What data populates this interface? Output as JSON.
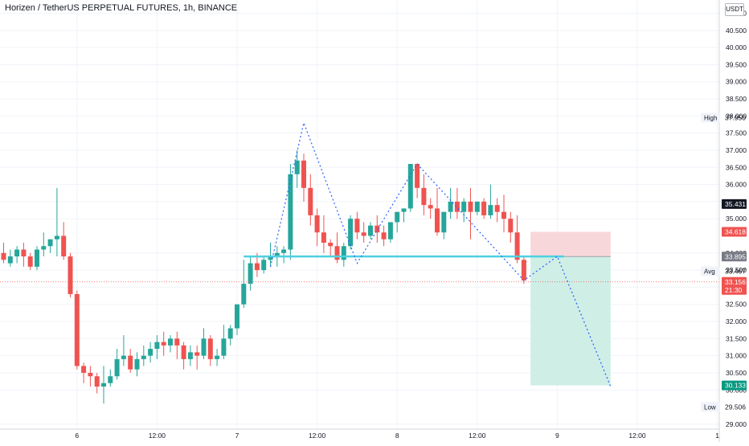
{
  "header": {
    "symbol_title": "Horizen / TetherUS PERPETUAL FUTURES, 1h, BINANCE",
    "currency": "USDT"
  },
  "colors": {
    "up": "#26a69a",
    "down": "#ef5350",
    "pattern_line": "#2962ff",
    "neckline": "#4dd0e1",
    "stop_zone": "#f8d7da",
    "target_zone": "#cfeee6",
    "grid": "#f0f3fa",
    "axis_text": "#131722"
  },
  "chart_data": {
    "type": "candlestick",
    "title": "Horizen / TetherUS PERPETUAL FUTURES, 1h, BINANCE",
    "ylim": [
      28.95,
      41.2
    ],
    "y_ticks": [
      "29.000",
      "30.000",
      "30.500",
      "31.000",
      "31.500",
      "32.000",
      "32.500",
      "33.000",
      "33.500",
      "34.000",
      "35.000",
      "35.500",
      "36.000",
      "36.500",
      "37.000",
      "37.500",
      "38.000",
      "38.500",
      "39.000",
      "39.500",
      "40.000",
      "40.500",
      "41.000"
    ],
    "x_ticks": [
      {
        "label": "6",
        "bar": 11
      },
      {
        "label": "12:00",
        "bar": 23
      },
      {
        "label": "7",
        "bar": 35
      },
      {
        "label": "12:00",
        "bar": 47
      },
      {
        "label": "8",
        "bar": 59
      },
      {
        "label": "12:00",
        "bar": 71
      },
      {
        "label": "9",
        "bar": 83
      },
      {
        "label": "12:00",
        "bar": 95
      },
      {
        "label": "1",
        "bar": 107
      }
    ],
    "bars_total": 107,
    "candles": [
      [
        34.0,
        34.3,
        33.8,
        33.7
      ],
      [
        33.7,
        34.1,
        33.9,
        33.6
      ],
      [
        33.9,
        34.2,
        34.1,
        33.7
      ],
      [
        34.1,
        34.3,
        33.9,
        33.6
      ],
      [
        33.9,
        34.0,
        33.6,
        33.5
      ],
      [
        33.6,
        34.2,
        34.1,
        33.5
      ],
      [
        34.1,
        34.6,
        34.2,
        33.9
      ],
      [
        34.2,
        34.4,
        34.4,
        34.0
      ],
      [
        34.4,
        35.9,
        34.5,
        33.9
      ],
      [
        34.5,
        34.9,
        33.9,
        33.8
      ],
      [
        33.9,
        34.0,
        32.8,
        32.7
      ],
      [
        32.8,
        32.9,
        30.7,
        30.6
      ],
      [
        30.7,
        30.8,
        30.5,
        30.2
      ],
      [
        30.5,
        30.7,
        30.4,
        30.1
      ],
      [
        30.4,
        30.5,
        30.1,
        29.9
      ],
      [
        30.1,
        30.7,
        30.2,
        29.6
      ],
      [
        30.2,
        30.6,
        30.4,
        30.1
      ],
      [
        30.4,
        31.2,
        30.9,
        30.3
      ],
      [
        30.9,
        31.6,
        31.0,
        30.7
      ],
      [
        31.0,
        31.2,
        30.6,
        30.5
      ],
      [
        30.6,
        31.1,
        30.9,
        30.4
      ],
      [
        30.9,
        31.3,
        31.0,
        30.7
      ],
      [
        31.0,
        31.4,
        31.2,
        30.8
      ],
      [
        31.2,
        31.6,
        31.4,
        30.9
      ],
      [
        31.4,
        31.7,
        31.3,
        31.0
      ],
      [
        31.3,
        31.6,
        31.5,
        31.1
      ],
      [
        31.5,
        31.7,
        31.3,
        30.9
      ],
      [
        31.3,
        31.4,
        30.9,
        30.6
      ],
      [
        30.9,
        31.3,
        31.1,
        30.7
      ],
      [
        31.1,
        31.3,
        31.0,
        30.6
      ],
      [
        31.0,
        31.8,
        31.5,
        30.9
      ],
      [
        31.5,
        31.6,
        30.9,
        30.7
      ],
      [
        30.9,
        31.2,
        31.0,
        30.7
      ],
      [
        31.0,
        31.9,
        31.5,
        30.9
      ],
      [
        31.5,
        31.9,
        31.8,
        31.3
      ],
      [
        31.8,
        32.5,
        32.5,
        31.6
      ],
      [
        32.5,
        33.8,
        33.1,
        32.4
      ],
      [
        33.1,
        33.9,
        33.7,
        32.9
      ],
      [
        33.7,
        34.0,
        33.5,
        33.3
      ],
      [
        33.5,
        33.9,
        33.8,
        33.4
      ],
      [
        33.8,
        34.3,
        33.9,
        33.6
      ],
      [
        33.9,
        34.2,
        34.0,
        33.6
      ],
      [
        34.0,
        34.2,
        34.1,
        33.7
      ],
      [
        34.1,
        36.6,
        36.3,
        33.8
      ],
      [
        36.3,
        37.0,
        36.7,
        35.9
      ],
      [
        36.7,
        36.9,
        35.9,
        35.5
      ],
      [
        35.9,
        36.3,
        35.1,
        34.8
      ],
      [
        35.1,
        35.3,
        34.6,
        34.2
      ],
      [
        34.6,
        35.1,
        34.3,
        34.0
      ],
      [
        34.3,
        34.4,
        34.2,
        33.9
      ],
      [
        34.2,
        34.6,
        33.8,
        33.7
      ],
      [
        33.8,
        34.3,
        34.2,
        33.6
      ],
      [
        34.2,
        35.1,
        35.0,
        34.1
      ],
      [
        35.0,
        35.2,
        34.6,
        34.4
      ],
      [
        34.6,
        34.9,
        34.5,
        34.3
      ],
      [
        34.5,
        34.9,
        34.8,
        34.4
      ],
      [
        34.8,
        35.1,
        34.6,
        34.3
      ],
      [
        34.6,
        34.8,
        34.4,
        34.2
      ],
      [
        34.4,
        34.9,
        34.9,
        34.3
      ],
      [
        34.9,
        35.2,
        35.2,
        34.6
      ],
      [
        35.2,
        35.3,
        35.3,
        34.9
      ],
      [
        35.3,
        36.0,
        36.6,
        35.2
      ],
      [
        36.6,
        36.6,
        35.9,
        35.6
      ],
      [
        35.9,
        36.3,
        35.4,
        35.1
      ],
      [
        35.4,
        35.6,
        35.3,
        35.0
      ],
      [
        35.3,
        35.9,
        34.6,
        34.5
      ],
      [
        34.6,
        35.0,
        35.2,
        34.4
      ],
      [
        35.2,
        35.9,
        35.5,
        35.0
      ],
      [
        35.5,
        35.9,
        35.2,
        35.0
      ],
      [
        35.2,
        35.6,
        35.5,
        34.9
      ],
      [
        35.5,
        35.9,
        35.2,
        34.4
      ],
      [
        35.2,
        35.5,
        35.5,
        35.1
      ],
      [
        35.5,
        35.6,
        35.1,
        35.0
      ],
      [
        35.1,
        36.0,
        35.4,
        35.0
      ],
      [
        35.4,
        35.6,
        35.2,
        34.9
      ],
      [
        35.2,
        35.7,
        35.0,
        34.6
      ],
      [
        35.0,
        35.2,
        34.6,
        34.3
      ],
      [
        34.6,
        35.1,
        33.8,
        33.7
      ],
      [
        33.8,
        33.9,
        33.2,
        33.1
      ]
    ],
    "pattern_points": [
      [
        40,
        33.6
      ],
      [
        45,
        37.8
      ],
      [
        53,
        33.7
      ],
      [
        62,
        36.6
      ],
      [
        78,
        33.2
      ],
      [
        83,
        33.9
      ],
      [
        91,
        30.1
      ]
    ],
    "neckline": {
      "x1": 36,
      "x2": 84,
      "y": 33.9
    },
    "position": {
      "x1": 79,
      "x2": 91,
      "entry": 33.895,
      "stop": 34.618,
      "target": 30.133
    },
    "price_line": 33.156,
    "price_labels": [
      {
        "side": "",
        "text": "37.950",
        "value": 37.95,
        "caption": "High",
        "style": "plain"
      },
      {
        "side": "",
        "text": "35.431",
        "value": 35.431,
        "caption": "",
        "style": "dark"
      },
      {
        "side": "",
        "text": "34.618",
        "value": 34.618,
        "caption": "",
        "style": "red"
      },
      {
        "side": "",
        "text": "33.895",
        "value": 33.895,
        "caption": "",
        "style": "gray"
      },
      {
        "side": "",
        "text": "33.467",
        "value": 33.467,
        "caption": "Avg",
        "style": "plain"
      },
      {
        "side": "",
        "text": "33.156",
        "value": 33.156,
        "caption": "",
        "style": "red",
        "sub": "21:30"
      },
      {
        "side": "",
        "text": "30.133",
        "value": 30.133,
        "caption": "",
        "style": "green"
      },
      {
        "side": "",
        "text": "29.506",
        "value": 29.506,
        "caption": "Low",
        "style": "plain"
      }
    ]
  }
}
